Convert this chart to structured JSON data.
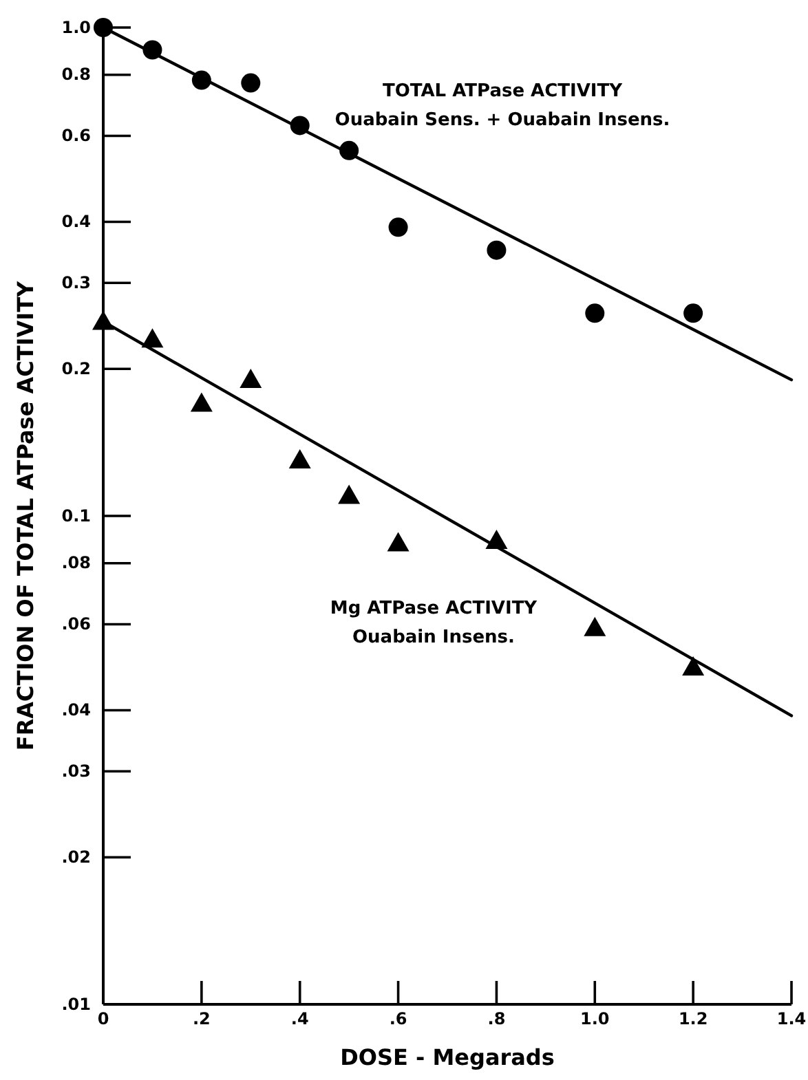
{
  "chart_data": {
    "type": "scatter",
    "xlabel": "DOSE - Megarads",
    "ylabel": "FRACTION OF TOTAL ATPase ACTIVITY",
    "log": "y",
    "grid": false,
    "xlim": [
      0,
      1.4
    ],
    "ylim": [
      0.01,
      1.0
    ],
    "xticks": [
      0,
      {
        "value": 0.2,
        "label": ".2"
      },
      {
        "value": 0.4,
        "label": ".4"
      },
      {
        "value": 0.6,
        "label": ".6"
      },
      {
        "value": 0.8,
        "label": ".8"
      },
      {
        "value": 1.0,
        "label": "1.0"
      },
      {
        "value": 1.2,
        "label": "1.2"
      },
      {
        "value": 1.4,
        "label": "1.4"
      }
    ],
    "yticks": [
      {
        "value": 1.0,
        "label": "1.0"
      },
      {
        "value": 0.8,
        "label": "0.8"
      },
      {
        "value": 0.6,
        "label": "0.6"
      },
      {
        "value": 0.4,
        "label": "0.4"
      },
      {
        "value": 0.3,
        "label": "0.3"
      },
      {
        "value": 0.2,
        "label": "0.2"
      },
      {
        "value": 0.1,
        "label": "0.1"
      },
      {
        "value": 0.08,
        "label": ".08"
      },
      {
        "value": 0.06,
        "label": ".06"
      },
      {
        "value": 0.04,
        "label": ".04"
      },
      {
        "value": 0.03,
        "label": ".03"
      },
      {
        "value": 0.02,
        "label": ".02"
      },
      {
        "value": 0.01,
        "label": ".01"
      }
    ],
    "annotations": [
      "TOTAL ATPase ACTIVITY",
      "Ouabain Sens. + Ouabain Insens.",
      "Mg ATPase ACTIVITY",
      "Ouabain Insens."
    ],
    "series": [
      {
        "marker": "circle",
        "color": "#000000",
        "x": [
          0,
          0.1,
          0.2,
          0.3,
          0.4,
          0.5,
          0.6,
          0.8,
          1.0,
          1.2
        ],
        "values": [
          1.0,
          0.9,
          0.78,
          0.77,
          0.63,
          0.56,
          0.39,
          0.35,
          0.26,
          0.26
        ]
      },
      {
        "marker": "triangle",
        "color": "#000000",
        "x": [
          0,
          0.1,
          0.2,
          0.3,
          0.4,
          0.5,
          0.6,
          0.8,
          1.0,
          1.2
        ],
        "values": [
          0.25,
          0.23,
          0.17,
          0.19,
          0.13,
          0.11,
          0.088,
          0.089,
          0.059,
          0.049
        ]
      },
      {
        "type": "line",
        "marker": "none",
        "line_style": "solid",
        "color": "#000000",
        "x": [
          0,
          1.4
        ],
        "values": [
          1.0,
          0.19
        ]
      },
      {
        "type": "line",
        "marker": "none",
        "line_style": "solid",
        "color": "#000000",
        "x": [
          0,
          1.4
        ],
        "values": [
          0.25,
          0.039
        ]
      }
    ]
  }
}
